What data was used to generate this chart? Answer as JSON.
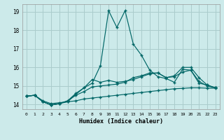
{
  "xlabel": "Humidex (Indice chaleur)",
  "background_color": "#cceaea",
  "grid_color": "#aacccc",
  "line_color": "#006666",
  "xlim": [
    -0.5,
    23.5
  ],
  "ylim": [
    13.75,
    19.4
  ],
  "ytick_vals": [
    14,
    15,
    16,
    17,
    18,
    19
  ],
  "line1_spike": {
    "x": [
      0,
      1,
      2,
      3,
      4,
      5,
      6,
      7,
      8,
      9,
      10,
      11,
      12,
      13,
      14,
      15,
      16,
      17,
      18,
      19,
      20,
      21,
      22,
      23
    ],
    "y": [
      14.45,
      14.5,
      14.15,
      13.98,
      14.05,
      14.15,
      14.55,
      14.9,
      15.15,
      16.1,
      19.05,
      18.15,
      19.05,
      17.25,
      16.65,
      15.85,
      15.5,
      15.4,
      15.2,
      15.9,
      15.85,
      15.15,
      15.05,
      14.9
    ]
  },
  "line2_upper": {
    "x": [
      0,
      1,
      2,
      3,
      4,
      5,
      6,
      7,
      8,
      9,
      10,
      11,
      12,
      13,
      14,
      15,
      16,
      17,
      18,
      19,
      20,
      21,
      22,
      23
    ],
    "y": [
      14.45,
      14.5,
      14.15,
      13.98,
      14.05,
      14.2,
      14.6,
      14.9,
      15.35,
      15.2,
      15.3,
      15.2,
      15.25,
      15.35,
      15.5,
      15.65,
      15.7,
      15.45,
      15.55,
      16.0,
      16.0,
      15.45,
      15.05,
      14.9
    ]
  },
  "line3_mid": {
    "x": [
      0,
      1,
      2,
      3,
      4,
      5,
      6,
      7,
      8,
      9,
      10,
      11,
      12,
      13,
      14,
      15,
      16,
      17,
      18,
      19,
      20,
      21,
      22,
      23
    ],
    "y": [
      14.45,
      14.5,
      14.15,
      13.98,
      14.05,
      14.2,
      14.5,
      14.7,
      14.95,
      15.0,
      15.05,
      15.1,
      15.2,
      15.45,
      15.55,
      15.7,
      15.7,
      15.45,
      15.5,
      15.75,
      15.85,
      15.25,
      15.0,
      14.9
    ]
  },
  "line4_flat": {
    "x": [
      0,
      1,
      2,
      3,
      4,
      5,
      6,
      7,
      8,
      9,
      10,
      11,
      12,
      13,
      14,
      15,
      16,
      17,
      18,
      19,
      20,
      21,
      22,
      23
    ],
    "y": [
      14.45,
      14.5,
      14.2,
      14.05,
      14.1,
      14.15,
      14.2,
      14.3,
      14.35,
      14.4,
      14.45,
      14.5,
      14.55,
      14.6,
      14.65,
      14.7,
      14.75,
      14.8,
      14.85,
      14.87,
      14.9,
      14.9,
      14.88,
      14.88
    ]
  }
}
